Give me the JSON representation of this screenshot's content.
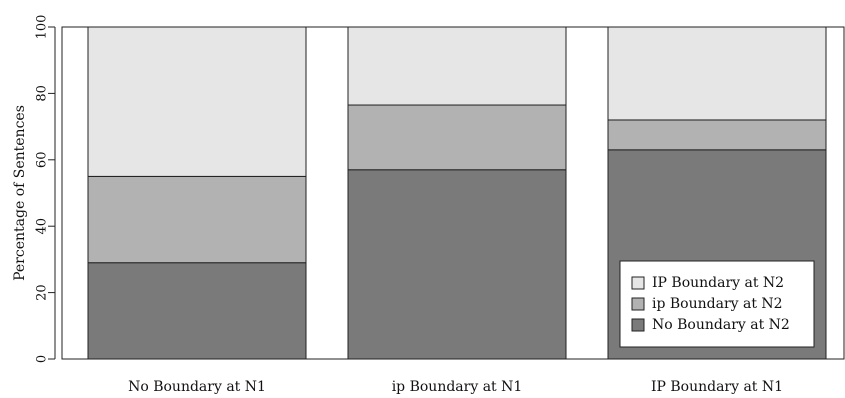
{
  "chart_data": {
    "type": "bar",
    "stacked": true,
    "categories": [
      "No Boundary at N1",
      "ip Boundary at N1",
      "IP Boundary at N1"
    ],
    "series": [
      {
        "name": "No Boundary at N2",
        "values": [
          29,
          57,
          63
        ],
        "color": "#7a7a7a"
      },
      {
        "name": "ip Boundary at N2",
        "values": [
          26,
          19.5,
          9
        ],
        "color": "#b2b2b2"
      },
      {
        "name": "IP Boundary at N2",
        "values": [
          45,
          23.5,
          28
        ],
        "color": "#e6e6e6"
      }
    ],
    "title": "",
    "xlabel": "",
    "ylabel": "Percentage of Sentences",
    "ylim": [
      0,
      100
    ],
    "yticks": [
      0,
      20,
      40,
      60,
      80,
      100
    ],
    "legend": {
      "placement": "bottom-right",
      "entries": [
        "IP Boundary at N2",
        "ip Boundary at N2",
        "No Boundary at N2"
      ]
    },
    "grid": false
  }
}
